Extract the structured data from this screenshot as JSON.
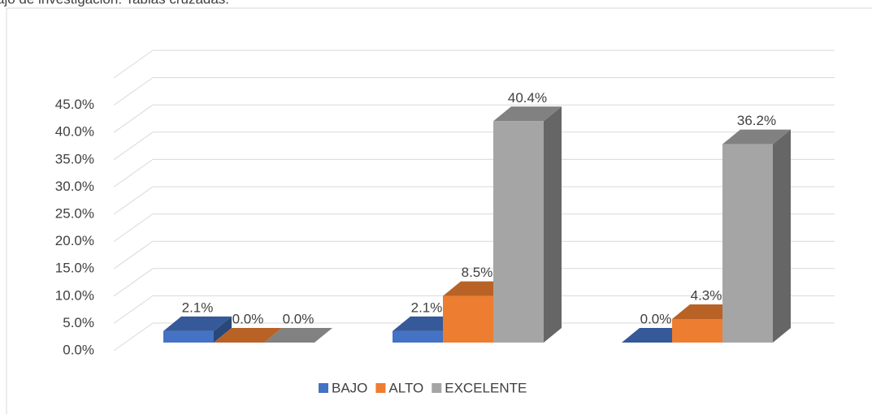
{
  "chart_data": {
    "type": "bar3d",
    "title": "ajo de investigación: Tablas cruzadas.",
    "categories": [
      null,
      null,
      null
    ],
    "series": [
      {
        "name": "BAJO",
        "color": "#4472c4",
        "values": [
          2.1,
          2.1,
          0.0
        ],
        "value_labels": [
          "2.1%",
          "2.1%",
          "0.0%"
        ]
      },
      {
        "name": "ALTO",
        "color": "#ed7d31",
        "values": [
          0.0,
          8.5,
          4.3
        ],
        "value_labels": [
          "0.0%",
          "8.5%",
          "4.3%"
        ]
      },
      {
        "name": "EXCELENTE",
        "color": "#a5a5a5",
        "values": [
          0.0,
          40.4,
          36.2
        ],
        "value_labels": [
          "0.0%",
          "40.4%",
          "36.2%"
        ]
      }
    ],
    "ylim": [
      0,
      50
    ],
    "yticks": [
      {
        "value": 0,
        "label": "0.0%"
      },
      {
        "value": 5,
        "label": "5.0%"
      },
      {
        "value": 10,
        "label": "10.0%"
      },
      {
        "value": 15,
        "label": "15.0%"
      },
      {
        "value": 20,
        "label": "20.0%"
      },
      {
        "value": 25,
        "label": "25.0%"
      },
      {
        "value": 30,
        "label": "30.0%"
      },
      {
        "value": 35,
        "label": "35.0%"
      },
      {
        "value": 40,
        "label": "40.0%"
      },
      {
        "value": 45,
        "label": "45.0%"
      }
    ],
    "grid": true,
    "legend": "bottom"
  }
}
